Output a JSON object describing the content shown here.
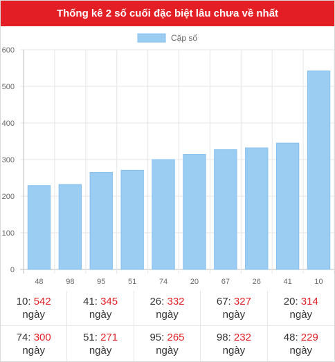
{
  "header": {
    "title": "Thống kê 2 số cuối đặc biệt lâu chưa về nhất"
  },
  "colors": {
    "header_bg": "#e31e24",
    "bar": "#9bcdf3",
    "accent_red": "#e31e24"
  },
  "chart_data": {
    "type": "bar",
    "title": "",
    "xlabel": "",
    "ylabel": "",
    "categories": [
      "48",
      "98",
      "95",
      "51",
      "74",
      "20",
      "67",
      "26",
      "41",
      "10"
    ],
    "series": [
      {
        "name": "Cặp số",
        "values": [
          229,
          232,
          265,
          271,
          300,
          314,
          327,
          332,
          345,
          542
        ]
      }
    ],
    "ylim": [
      0,
      600
    ],
    "yticks": [
      0,
      100,
      200,
      300,
      400,
      500,
      600
    ],
    "grid": true,
    "legend": "top-center"
  },
  "stats": {
    "unit": "ngày",
    "items": [
      {
        "number": "10",
        "days": "542"
      },
      {
        "number": "41",
        "days": "345"
      },
      {
        "number": "26",
        "days": "332"
      },
      {
        "number": "67",
        "days": "327"
      },
      {
        "number": "20",
        "days": "314"
      },
      {
        "number": "74",
        "days": "300"
      },
      {
        "number": "51",
        "days": "271"
      },
      {
        "number": "95",
        "days": "265"
      },
      {
        "number": "98",
        "days": "232"
      },
      {
        "number": "48",
        "days": "229"
      }
    ]
  }
}
